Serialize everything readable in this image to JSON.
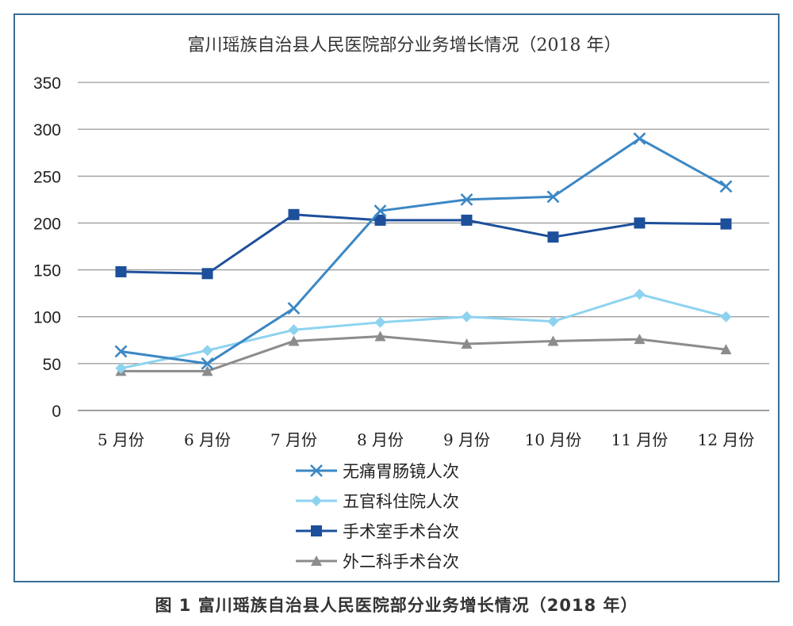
{
  "chart_data": {
    "type": "line",
    "title": "富川瑶族自治县人民医院部分业务增长情况（2018 年）",
    "categories": [
      "5 月份",
      "6 月份",
      "7 月份",
      "8 月份",
      "9 月份",
      "10 月份",
      "11 月份",
      "12 月份"
    ],
    "ylim": [
      0,
      350
    ],
    "yticks": [
      0,
      50,
      100,
      150,
      200,
      250,
      300,
      350
    ],
    "grid": true,
    "legend_position": "bottom",
    "series": [
      {
        "name": "无痛胃肠镜人次",
        "marker": "x",
        "color": "#3b87c4",
        "values": [
          63,
          50,
          109,
          213,
          225,
          228,
          290,
          239
        ]
      },
      {
        "name": "五官科住院人次",
        "marker": "diamond",
        "color": "#8dd3f0",
        "values": [
          45,
          64,
          86,
          94,
          100,
          95,
          124,
          100
        ]
      },
      {
        "name": "手术室手术台次",
        "marker": "square",
        "color": "#1d4f9b",
        "values": [
          148,
          146,
          209,
          203,
          203,
          185,
          200,
          199
        ]
      },
      {
        "name": "外二科手术台次",
        "marker": "triangle",
        "color": "#8c8c8c",
        "values": [
          42,
          42,
          74,
          79,
          71,
          74,
          76,
          65
        ]
      }
    ]
  },
  "caption": "图 1  富川瑶族自治县人民医院部分业务增长情况（2018 年）"
}
